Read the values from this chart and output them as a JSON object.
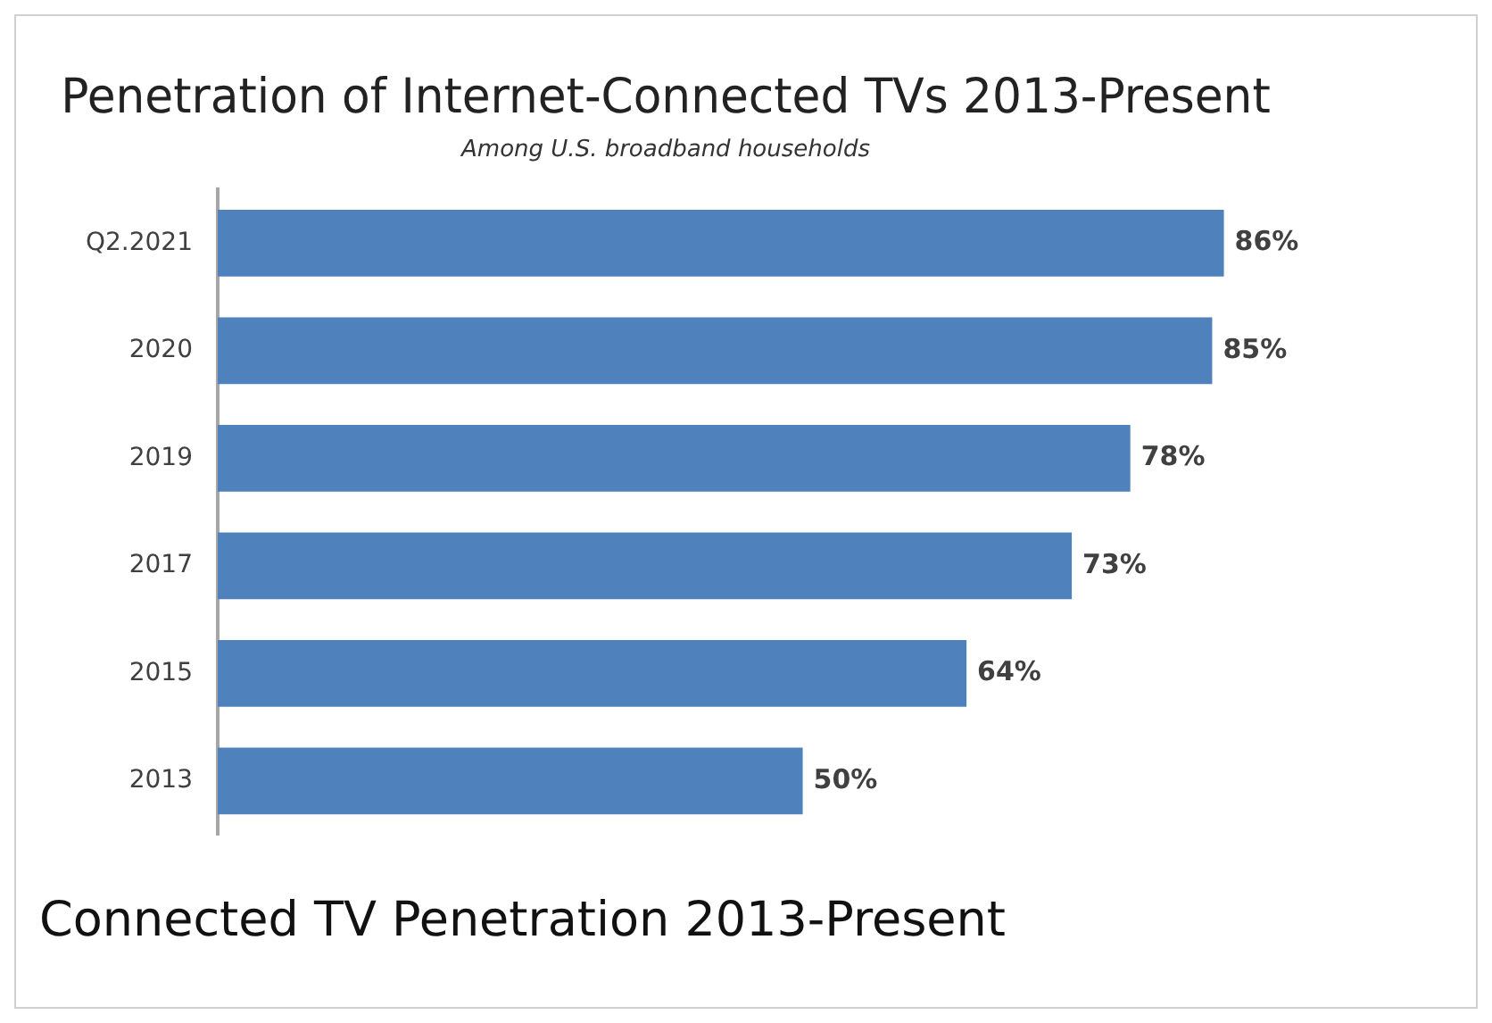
{
  "chart_data": {
    "type": "bar",
    "orientation": "horizontal",
    "title": "Penetration of Internet-Connected TVs 2013-Present",
    "subtitle": "Among U.S. broadband households",
    "categories": [
      "Q2.2021",
      "2020",
      "2019",
      "2017",
      "2015",
      "2013"
    ],
    "values": [
      86,
      85,
      78,
      73,
      64,
      50
    ],
    "color": "#4f81bd",
    "value_labels": [
      "86%",
      "85%",
      "78%",
      "73%",
      "64%",
      "50%"
    ],
    "legend": false,
    "annotations": [
      "Connected TV Penetration 2013-Present"
    ]
  }
}
